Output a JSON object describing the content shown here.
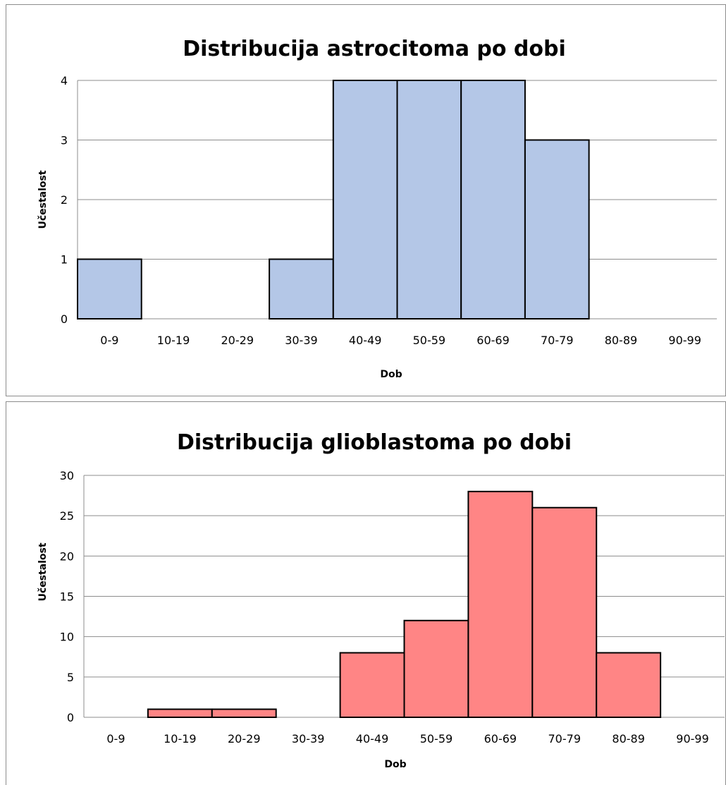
{
  "chart_data": [
    {
      "type": "bar",
      "title": "Distribucija astrocitoma po dobi",
      "xlabel": "Dob",
      "ylabel": "Učestalost",
      "categories": [
        "0-9",
        "10-19",
        "20-29",
        "30-39",
        "40-49",
        "50-59",
        "60-69",
        "70-79",
        "80-89",
        "90-99"
      ],
      "values": [
        1,
        0,
        0,
        1,
        4,
        4,
        4,
        3,
        0,
        0
      ],
      "ylim": [
        0,
        4
      ],
      "yticks": [
        "0",
        "1",
        "2",
        "3",
        "4"
      ],
      "grid": true,
      "bar_color": "#b4c7e7",
      "bar_gap": "none"
    },
    {
      "type": "bar",
      "title": "Distribucija glioblastoma po dobi",
      "xlabel": "Dob",
      "ylabel": "Učestalost",
      "categories": [
        "0-9",
        "10-19",
        "20-29",
        "30-39",
        "40-49",
        "50-59",
        "60-69",
        "70-79",
        "80-89",
        "90-99"
      ],
      "values": [
        0,
        1,
        1,
        0,
        8,
        12,
        28,
        26,
        8,
        0
      ],
      "ylim": [
        0,
        30
      ],
      "yticks": [
        "0",
        "5",
        "10",
        "15",
        "20",
        "25",
        "30"
      ],
      "grid": true,
      "bar_color": "#ff8585",
      "bar_gap": "none"
    }
  ]
}
